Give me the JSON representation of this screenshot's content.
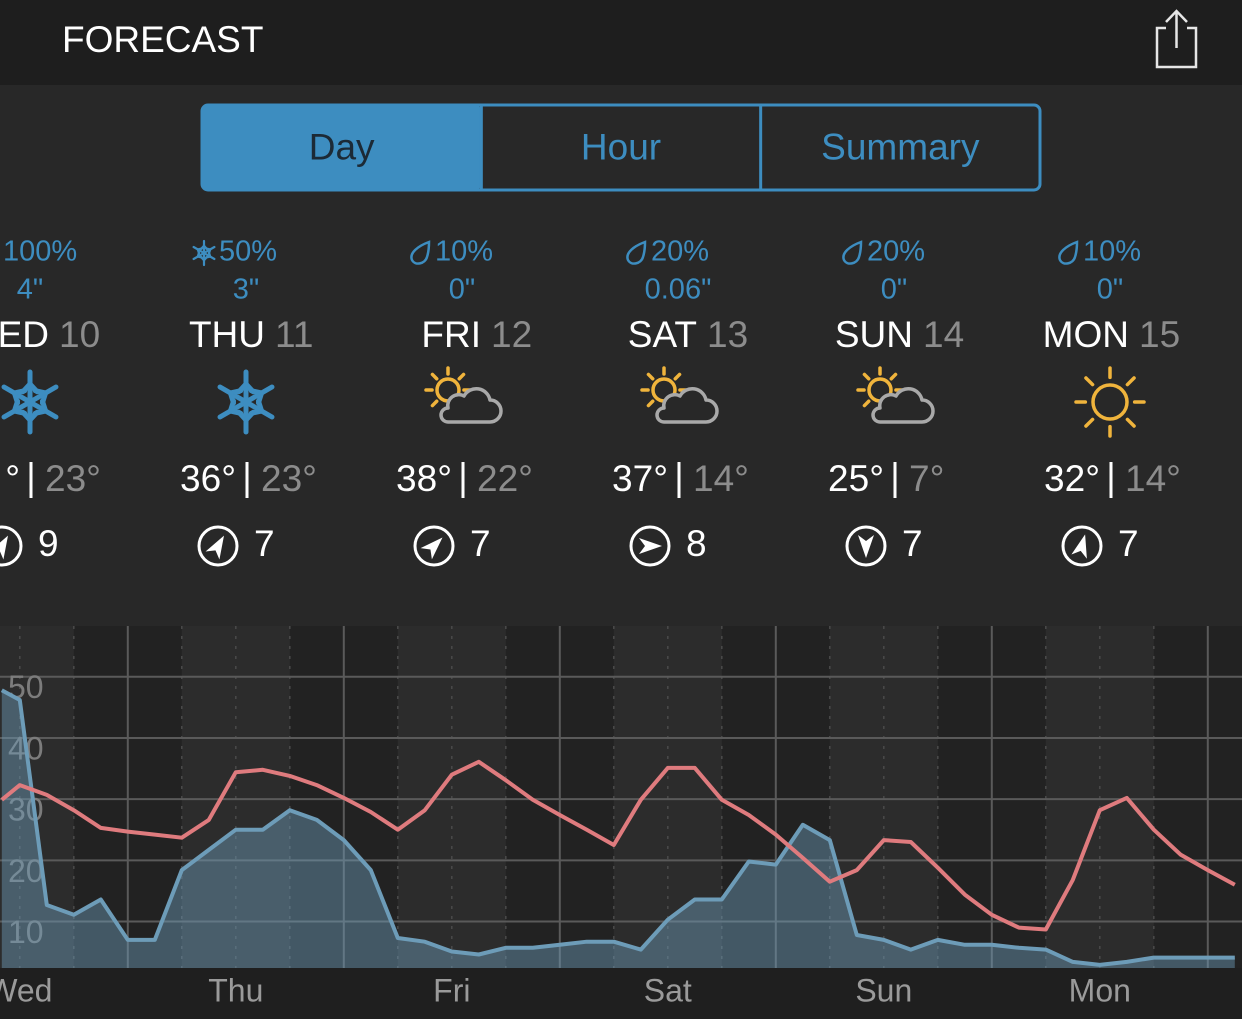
{
  "header": {
    "title": "FORECAST"
  },
  "tabs": [
    {
      "label": "Day",
      "selected": true
    },
    {
      "label": "Hour",
      "selected": false
    },
    {
      "label": "Summary",
      "selected": false
    }
  ],
  "days": [
    {
      "precip": "100%",
      "precip_type": "snow",
      "amount": "4\"",
      "name": "ED",
      "date": "10",
      "icon": "snow",
      "high": "°",
      "low": "23°",
      "wind": "9",
      "wind_dir": 30
    },
    {
      "precip": "50%",
      "precip_type": "snow",
      "amount": "3\"",
      "name": "THU",
      "date": "11",
      "icon": "snow",
      "high": "36°",
      "low": "23°",
      "wind": "7",
      "wind_dir": 30
    },
    {
      "precip": "10%",
      "precip_type": "rain",
      "amount": "0\"",
      "name": "FRI",
      "date": "12",
      "icon": "partly-sunny",
      "high": "38°",
      "low": "22°",
      "wind": "7",
      "wind_dir": 45
    },
    {
      "precip": "20%",
      "precip_type": "rain",
      "amount": "0.06\"",
      "name": "SAT",
      "date": "13",
      "icon": "partly-sunny",
      "high": "37°",
      "low": "14°",
      "wind": "8",
      "wind_dir": 90
    },
    {
      "precip": "20%",
      "precip_type": "rain",
      "amount": "0\"",
      "name": "SUN",
      "date": "14",
      "icon": "partly-sunny",
      "high": "25°",
      "low": "7°",
      "wind": "7",
      "wind_dir": 180
    },
    {
      "precip": "10%",
      "precip_type": "rain",
      "amount": "0\"",
      "name": "MON",
      "date": "15",
      "icon": "sunny",
      "high": "32°",
      "low": "14°",
      "wind": "7",
      "wind_dir": 15
    }
  ],
  "chart_data": {
    "type": "line",
    "x": [
      10,
      12,
      15,
      18,
      21,
      24,
      27,
      30,
      33,
      36,
      39,
      42,
      45,
      48,
      51,
      54,
      57,
      60,
      63,
      66,
      69,
      72,
      75,
      78,
      81,
      84,
      87,
      90,
      93,
      96,
      99,
      102,
      105,
      108,
      111,
      114,
      117,
      120,
      123,
      126,
      129,
      132,
      135,
      138,
      141,
      144,
      147
    ],
    "series": [
      {
        "color": "#6d9cb8",
        "fill": true,
        "values": [
          47.8,
          46.2,
          12.7,
          11.1,
          13.6,
          7.0,
          7.0,
          18.4,
          21.7,
          25.0,
          25.0,
          28.2,
          26.6,
          23.3,
          18.4,
          7.3,
          6.7,
          5.1,
          4.6,
          5.7,
          5.7,
          6.2,
          6.7,
          6.7,
          5.4,
          10.3,
          13.6,
          13.6,
          19.8,
          19.3,
          25.8,
          23.3,
          7.8,
          7.0,
          5.4,
          7.0,
          6.2,
          6.2,
          5.7,
          5.4,
          3.4,
          2.9,
          3.4,
          4.1,
          4.1,
          4.1,
          4.1
        ]
      },
      {
        "color": "#df7b7e",
        "fill": false,
        "values": [
          29.9,
          32.3,
          30.7,
          28.2,
          25.3,
          24.7,
          24.2,
          23.7,
          26.6,
          34.4,
          34.8,
          33.8,
          32.3,
          30.2,
          27.9,
          25.0,
          28.2,
          34.0,
          36.1,
          33.1,
          29.9,
          27.4,
          25.0,
          22.5,
          29.9,
          35.1,
          35.1,
          29.9,
          27.4,
          24.2,
          20.4,
          16.5,
          18.4,
          23.3,
          23.0,
          18.8,
          14.4,
          11.1,
          9.0,
          8.7,
          16.8,
          28.2,
          30.2,
          25.0,
          20.9,
          18.4,
          16.0
        ]
      }
    ],
    "xlim": [
      9.8,
      147.8
    ],
    "xticks": [
      {
        "value": 12,
        "label": "Wed"
      },
      {
        "value": 36,
        "label": "Thu"
      },
      {
        "value": 60,
        "label": "Fri"
      },
      {
        "value": 84,
        "label": "Sat"
      },
      {
        "value": 108,
        "label": "Sun"
      },
      {
        "value": 132,
        "label": "Mon"
      }
    ],
    "xgrid": [
      24,
      48,
      72,
      96,
      120,
      144
    ],
    "ylim": [
      2.4,
      58.3
    ],
    "yticks": [
      10,
      20,
      30,
      40,
      50
    ],
    "grid": true
  }
}
